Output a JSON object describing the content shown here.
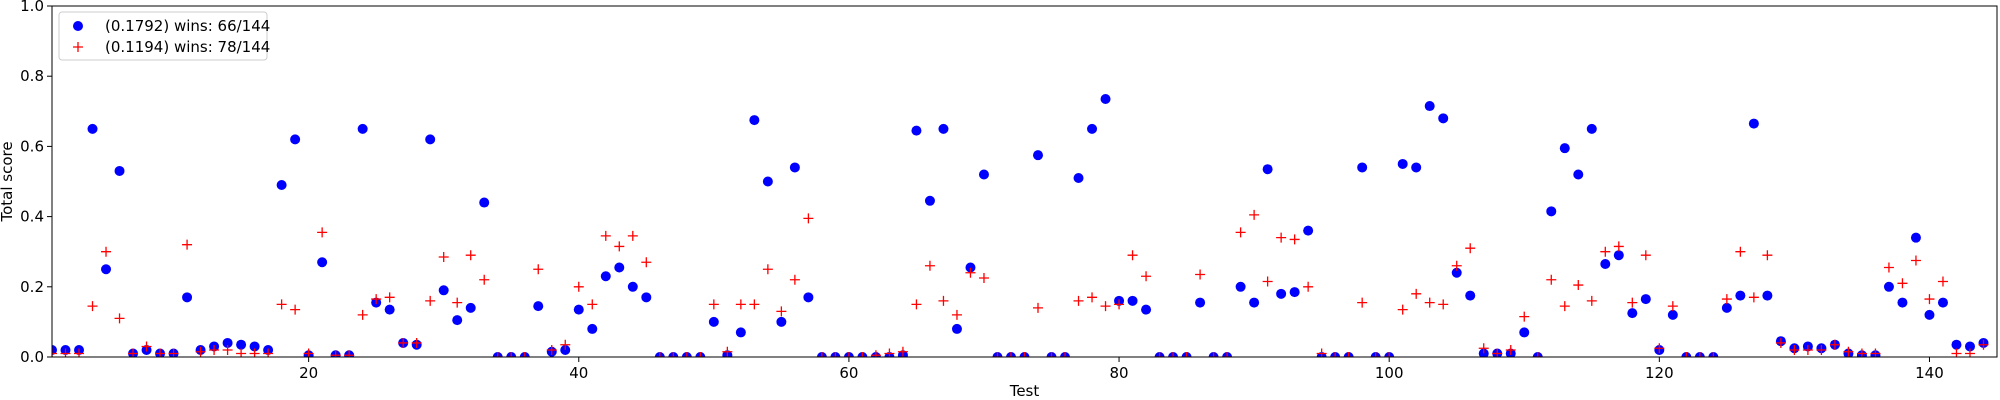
{
  "chart_data": {
    "type": "scatter",
    "title": "",
    "xlabel": "Test",
    "ylabel": "Total score",
    "xlim": [
      1,
      145
    ],
    "ylim": [
      0,
      1
    ],
    "xticks": [
      20,
      40,
      60,
      80,
      100,
      120,
      140
    ],
    "yticks": [
      0.0,
      0.2,
      0.4,
      0.6,
      0.8,
      1.0
    ],
    "grid": false,
    "legend": "top-left",
    "series": [
      {
        "name": "(0.1792) wins: 66/144",
        "marker": "circle",
        "color": "#0000ff",
        "points": [
          [
            1,
            0.02
          ],
          [
            2,
            0.02
          ],
          [
            3,
            0.02
          ],
          [
            4,
            0.65
          ],
          [
            5,
            0.25
          ],
          [
            6,
            0.53
          ],
          [
            7,
            0.01
          ],
          [
            8,
            0.02
          ],
          [
            9,
            0.01
          ],
          [
            10,
            0.01
          ],
          [
            11,
            0.17
          ],
          [
            12,
            0.02
          ],
          [
            13,
            0.03
          ],
          [
            14,
            0.04
          ],
          [
            15,
            0.035
          ],
          [
            16,
            0.03
          ],
          [
            17,
            0.02
          ],
          [
            18,
            0.49
          ],
          [
            19,
            0.62
          ],
          [
            20,
            0.005
          ],
          [
            21,
            0.27
          ],
          [
            22,
            0.005
          ],
          [
            23,
            0.005
          ],
          [
            24,
            0.65
          ],
          [
            25,
            0.155
          ],
          [
            26,
            0.135
          ],
          [
            27,
            0.04
          ],
          [
            28,
            0.035
          ],
          [
            29,
            0.62
          ],
          [
            30,
            0.19
          ],
          [
            31,
            0.105
          ],
          [
            32,
            0.14
          ],
          [
            33,
            0.44
          ],
          [
            34,
            0.0
          ],
          [
            35,
            0.0
          ],
          [
            36,
            0.0
          ],
          [
            37,
            0.145
          ],
          [
            38,
            0.015
          ],
          [
            39,
            0.02
          ],
          [
            40,
            0.135
          ],
          [
            41,
            0.08
          ],
          [
            42,
            0.23
          ],
          [
            43,
            0.255
          ],
          [
            44,
            0.2
          ],
          [
            45,
            0.17
          ],
          [
            46,
            0.0
          ],
          [
            47,
            0.0
          ],
          [
            48,
            0.0
          ],
          [
            49,
            0.0
          ],
          [
            50,
            0.1
          ],
          [
            51,
            0.005
          ],
          [
            52,
            0.07
          ],
          [
            53,
            0.675
          ],
          [
            54,
            0.5
          ],
          [
            55,
            0.1
          ],
          [
            56,
            0.54
          ],
          [
            57,
            0.17
          ],
          [
            58,
            0.0
          ],
          [
            59,
            0.0
          ],
          [
            60,
            0.0
          ],
          [
            61,
            0.0
          ],
          [
            62,
            0.0
          ],
          [
            63,
            0.0
          ],
          [
            64,
            0.005
          ],
          [
            65,
            0.645
          ],
          [
            66,
            0.445
          ],
          [
            67,
            0.65
          ],
          [
            68,
            0.08
          ],
          [
            69,
            0.255
          ],
          [
            70,
            0.52
          ],
          [
            71,
            0.0
          ],
          [
            72,
            0.0
          ],
          [
            73,
            0.0
          ],
          [
            74,
            0.575
          ],
          [
            75,
            0.0
          ],
          [
            76,
            0.0
          ],
          [
            77,
            0.51
          ],
          [
            78,
            0.65
          ],
          [
            79,
            0.735
          ],
          [
            80,
            0.16
          ],
          [
            81,
            0.16
          ],
          [
            82,
            0.135
          ],
          [
            83,
            0.0
          ],
          [
            84,
            0.0
          ],
          [
            85,
            0.0
          ],
          [
            86,
            0.155
          ],
          [
            87,
            0.0
          ],
          [
            88,
            0.0
          ],
          [
            89,
            0.2
          ],
          [
            90,
            0.155
          ],
          [
            91,
            0.535
          ],
          [
            92,
            0.18
          ],
          [
            93,
            0.185
          ],
          [
            94,
            0.36
          ],
          [
            95,
            0.0
          ],
          [
            96,
            0.0
          ],
          [
            97,
            0.0
          ],
          [
            98,
            0.54
          ],
          [
            99,
            0.0
          ],
          [
            100,
            0.0
          ],
          [
            101,
            0.55
          ],
          [
            102,
            0.54
          ],
          [
            103,
            0.715
          ],
          [
            104,
            0.68
          ],
          [
            105,
            0.24
          ],
          [
            106,
            0.175
          ],
          [
            107,
            0.01
          ],
          [
            108,
            0.01
          ],
          [
            109,
            0.01
          ],
          [
            110,
            0.07
          ],
          [
            111,
            0.0
          ],
          [
            112,
            0.415
          ],
          [
            113,
            0.595
          ],
          [
            114,
            0.52
          ],
          [
            115,
            0.65
          ],
          [
            116,
            0.265
          ],
          [
            117,
            0.29
          ],
          [
            118,
            0.125
          ],
          [
            119,
            0.165
          ],
          [
            120,
            0.02
          ],
          [
            121,
            0.12
          ],
          [
            122,
            0.0
          ],
          [
            123,
            0.0
          ],
          [
            124,
            0.0
          ],
          [
            125,
            0.14
          ],
          [
            126,
            0.175
          ],
          [
            127,
            0.665
          ],
          [
            128,
            0.175
          ],
          [
            129,
            0.045
          ],
          [
            130,
            0.025
          ],
          [
            131,
            0.03
          ],
          [
            132,
            0.025
          ],
          [
            133,
            0.035
          ],
          [
            134,
            0.01
          ],
          [
            135,
            0.005
          ],
          [
            136,
            0.005
          ],
          [
            137,
            0.2
          ],
          [
            138,
            0.155
          ],
          [
            139,
            0.34
          ],
          [
            140,
            0.12
          ],
          [
            141,
            0.155
          ],
          [
            142,
            0.035
          ],
          [
            143,
            0.03
          ],
          [
            144,
            0.04
          ]
        ]
      },
      {
        "name": "(0.1194) wins: 78/144",
        "marker": "plus",
        "color": "#ff0000",
        "points": [
          [
            1,
            0.01
          ],
          [
            2,
            0.01
          ],
          [
            3,
            0.01
          ],
          [
            4,
            0.145
          ],
          [
            5,
            0.3
          ],
          [
            6,
            0.11
          ],
          [
            7,
            0.01
          ],
          [
            8,
            0.03
          ],
          [
            9,
            0.01
          ],
          [
            10,
            0.01
          ],
          [
            11,
            0.32
          ],
          [
            12,
            0.015
          ],
          [
            13,
            0.02
          ],
          [
            14,
            0.02
          ],
          [
            15,
            0.01
          ],
          [
            16,
            0.01
          ],
          [
            17,
            0.01
          ],
          [
            18,
            0.15
          ],
          [
            19,
            0.135
          ],
          [
            20,
            0.01
          ],
          [
            21,
            0.355
          ],
          [
            22,
            0.005
          ],
          [
            23,
            0.005
          ],
          [
            24,
            0.12
          ],
          [
            25,
            0.165
          ],
          [
            26,
            0.17
          ],
          [
            27,
            0.04
          ],
          [
            28,
            0.04
          ],
          [
            29,
            0.16
          ],
          [
            30,
            0.285
          ],
          [
            31,
            0.155
          ],
          [
            32,
            0.29
          ],
          [
            33,
            0.22
          ],
          [
            34,
            0.0
          ],
          [
            35,
            0.0
          ],
          [
            36,
            0.0
          ],
          [
            37,
            0.25
          ],
          [
            38,
            0.02
          ],
          [
            39,
            0.035
          ],
          [
            40,
            0.2
          ],
          [
            41,
            0.15
          ],
          [
            42,
            0.345
          ],
          [
            43,
            0.315
          ],
          [
            44,
            0.345
          ],
          [
            45,
            0.27
          ],
          [
            46,
            0.0
          ],
          [
            47,
            0.0
          ],
          [
            48,
            0.0
          ],
          [
            49,
            0.0
          ],
          [
            50,
            0.15
          ],
          [
            51,
            0.015
          ],
          [
            52,
            0.15
          ],
          [
            53,
            0.15
          ],
          [
            54,
            0.25
          ],
          [
            55,
            0.13
          ],
          [
            56,
            0.22
          ],
          [
            57,
            0.395
          ],
          [
            58,
            0.0
          ],
          [
            59,
            0.0
          ],
          [
            60,
            0.0
          ],
          [
            61,
            0.0
          ],
          [
            62,
            0.005
          ],
          [
            63,
            0.01
          ],
          [
            64,
            0.015
          ],
          [
            65,
            0.15
          ],
          [
            66,
            0.26
          ],
          [
            67,
            0.16
          ],
          [
            68,
            0.12
          ],
          [
            69,
            0.24
          ],
          [
            70,
            0.225
          ],
          [
            71,
            0.0
          ],
          [
            72,
            0.0
          ],
          [
            73,
            0.0
          ],
          [
            74,
            0.14
          ],
          [
            75,
            0.0
          ],
          [
            76,
            0.0
          ],
          [
            77,
            0.16
          ],
          [
            78,
            0.17
          ],
          [
            79,
            0.145
          ],
          [
            80,
            0.15
          ],
          [
            81,
            0.29
          ],
          [
            82,
            0.23
          ],
          [
            83,
            0.0
          ],
          [
            84,
            0.0
          ],
          [
            85,
            0.0
          ],
          [
            86,
            0.235
          ],
          [
            87,
            0.0
          ],
          [
            88,
            0.0
          ],
          [
            89,
            0.355
          ],
          [
            90,
            0.405
          ],
          [
            91,
            0.215
          ],
          [
            92,
            0.34
          ],
          [
            93,
            0.335
          ],
          [
            94,
            0.2
          ],
          [
            95,
            0.01
          ],
          [
            96,
            0.0
          ],
          [
            97,
            0.0
          ],
          [
            98,
            0.155
          ],
          [
            99,
            0.0
          ],
          [
            100,
            0.0
          ],
          [
            101,
            0.135
          ],
          [
            102,
            0.18
          ],
          [
            103,
            0.155
          ],
          [
            104,
            0.15
          ],
          [
            105,
            0.26
          ],
          [
            106,
            0.31
          ],
          [
            107,
            0.025
          ],
          [
            108,
            0.01
          ],
          [
            109,
            0.02
          ],
          [
            110,
            0.115
          ],
          [
            111,
            0.0
          ],
          [
            112,
            0.22
          ],
          [
            113,
            0.145
          ],
          [
            114,
            0.205
          ],
          [
            115,
            0.16
          ],
          [
            116,
            0.3
          ],
          [
            117,
            0.315
          ],
          [
            118,
            0.155
          ],
          [
            119,
            0.29
          ],
          [
            120,
            0.025
          ],
          [
            121,
            0.145
          ],
          [
            122,
            0.0
          ],
          [
            123,
            0.0
          ],
          [
            124,
            0.0
          ],
          [
            125,
            0.165
          ],
          [
            126,
            0.3
          ],
          [
            127,
            0.17
          ],
          [
            128,
            0.29
          ],
          [
            129,
            0.04
          ],
          [
            130,
            0.02
          ],
          [
            131,
            0.02
          ],
          [
            132,
            0.02
          ],
          [
            133,
            0.035
          ],
          [
            134,
            0.015
          ],
          [
            135,
            0.01
          ],
          [
            136,
            0.01
          ],
          [
            137,
            0.255
          ],
          [
            138,
            0.21
          ],
          [
            139,
            0.275
          ],
          [
            140,
            0.165
          ],
          [
            141,
            0.215
          ],
          [
            142,
            0.01
          ],
          [
            143,
            0.01
          ],
          [
            144,
            0.035
          ]
        ]
      }
    ]
  }
}
